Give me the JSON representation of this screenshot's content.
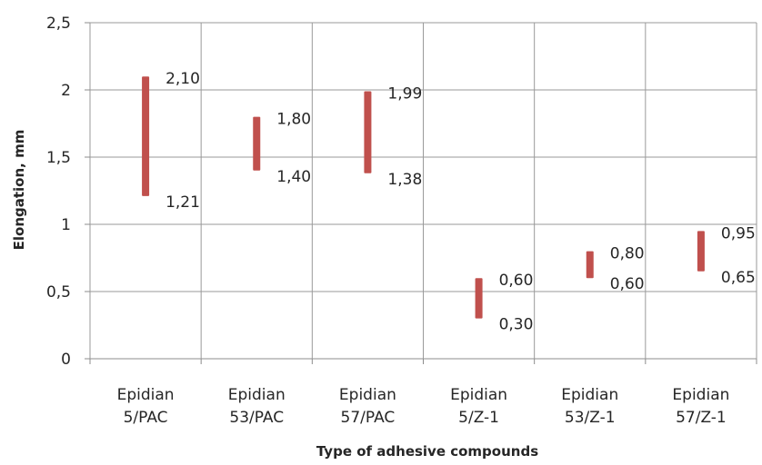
{
  "chart_data": {
    "type": "range-bar",
    "title": "",
    "xlabel": "Type of adhesive compounds",
    "ylabel": "Elongation, mm",
    "ylim": [
      0,
      2.5
    ],
    "y_ticks": [
      "0",
      "0,5",
      "1",
      "1,5",
      "2",
      "2,5"
    ],
    "y_tick_values": [
      0,
      0.5,
      1,
      1.5,
      2,
      2.5
    ],
    "grid": true,
    "legend": "none",
    "bar_color": "#c0504d",
    "categories": [
      [
        "Epidian",
        "5/PAC"
      ],
      [
        "Epidian",
        "53/PAC"
      ],
      [
        "Epidian",
        "57/PAC"
      ],
      [
        "Epidian",
        "5/Z-1"
      ],
      [
        "Epidian",
        "53/Z-1"
      ],
      [
        "Epidian",
        "57/Z-1"
      ]
    ],
    "series": [
      {
        "low": 1.21,
        "high": 2.1,
        "low_label": "1,21",
        "high_label": "2,10"
      },
      {
        "low": 1.4,
        "high": 1.8,
        "low_label": "1,40",
        "high_label": "1,80"
      },
      {
        "low": 1.38,
        "high": 1.99,
        "low_label": "1,38",
        "high_label": "1,99"
      },
      {
        "low": 0.3,
        "high": 0.6,
        "low_label": "0,30",
        "high_label": "0,60"
      },
      {
        "low": 0.6,
        "high": 0.8,
        "low_label": "0,60",
        "high_label": "0,80"
      },
      {
        "low": 0.65,
        "high": 0.95,
        "low_label": "0,65",
        "high_label": "0,95"
      }
    ]
  }
}
